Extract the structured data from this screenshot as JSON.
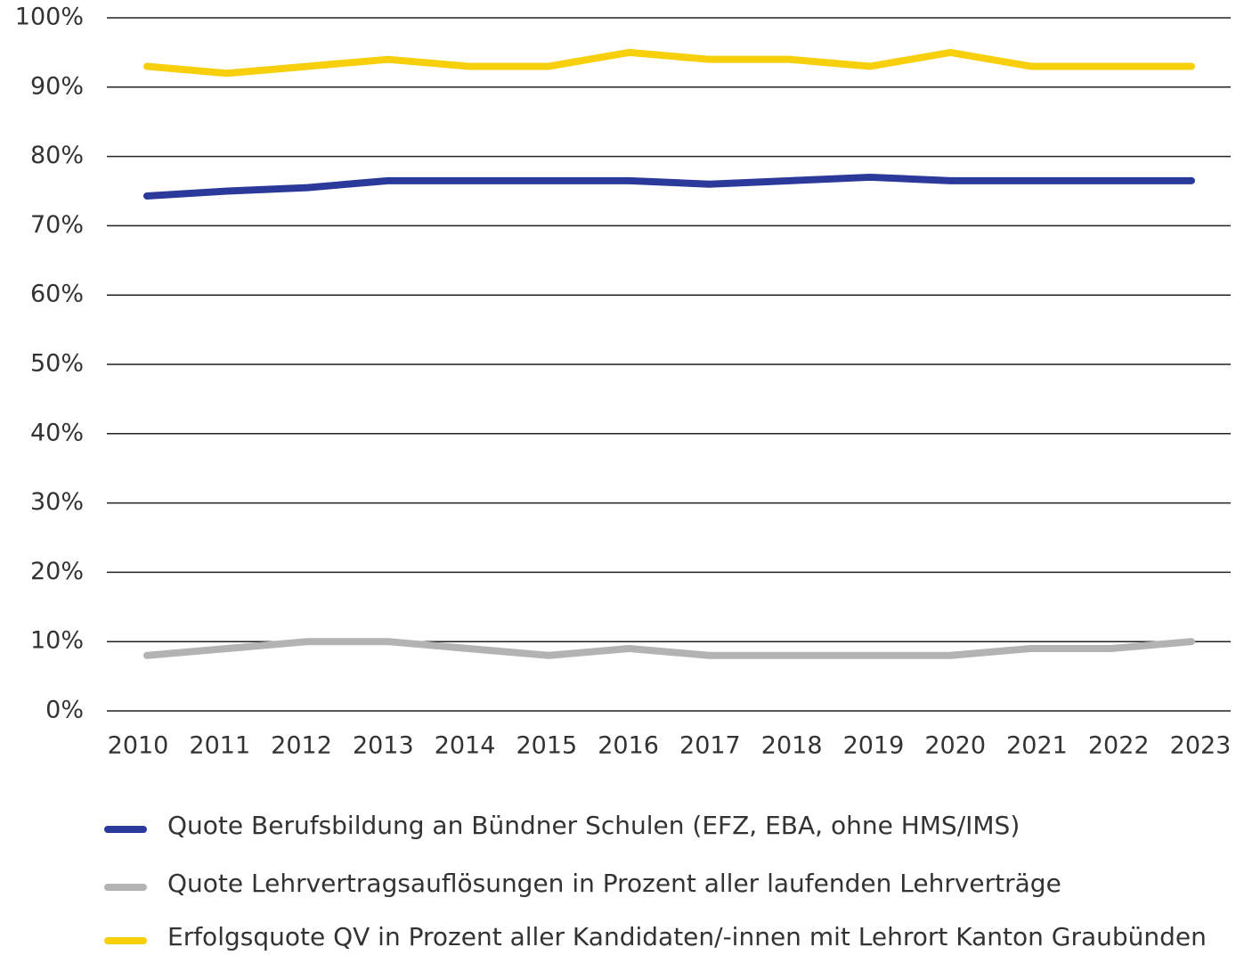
{
  "chart_data": {
    "type": "line",
    "categories": [
      "2010",
      "2011",
      "2012",
      "2013",
      "2014",
      "2015",
      "2016",
      "2017",
      "2018",
      "2019",
      "2020",
      "2021",
      "2022",
      "2023"
    ],
    "series": [
      {
        "name": "Quote Berufsbildung an Bündner Schulen (EFZ, EBA, ohne HMS/IMS)",
        "color": "#2b3a9a",
        "values": [
          74.3,
          75,
          75.5,
          76.5,
          76.5,
          76.5,
          76.5,
          76,
          76.5,
          77,
          76.5,
          76.5,
          76.5,
          76.5
        ]
      },
      {
        "name": "Quote Lehrvertragsauflösungen in Prozent aller laufenden Lehrverträge",
        "color": "#b3b3b3",
        "values": [
          8,
          9,
          10,
          10,
          9,
          8,
          9,
          8,
          8,
          8,
          8,
          9,
          9,
          10
        ]
      },
      {
        "name": "Erfolgsquote QV in Prozent aller Kandidaten/-innen mit Lehrort Kanton Graubünden",
        "color": "#f7cf0a",
        "values": [
          93,
          92,
          93,
          94,
          93,
          93,
          95,
          94,
          94,
          93,
          95,
          93,
          93,
          93
        ]
      }
    ],
    "ylim": [
      0,
      100
    ],
    "yticks": [
      {
        "value": 0,
        "label": "0%"
      },
      {
        "value": 10,
        "label": "10%"
      },
      {
        "value": 20,
        "label": "20%"
      },
      {
        "value": 30,
        "label": "30%"
      },
      {
        "value": 40,
        "label": "40%"
      },
      {
        "value": 50,
        "label": "50%"
      },
      {
        "value": 60,
        "label": "60%"
      },
      {
        "value": 70,
        "label": "70%"
      },
      {
        "value": 80,
        "label": "80%"
      },
      {
        "value": 90,
        "label": "90%"
      },
      {
        "value": 100,
        "label": "100%"
      }
    ],
    "grid": true
  }
}
